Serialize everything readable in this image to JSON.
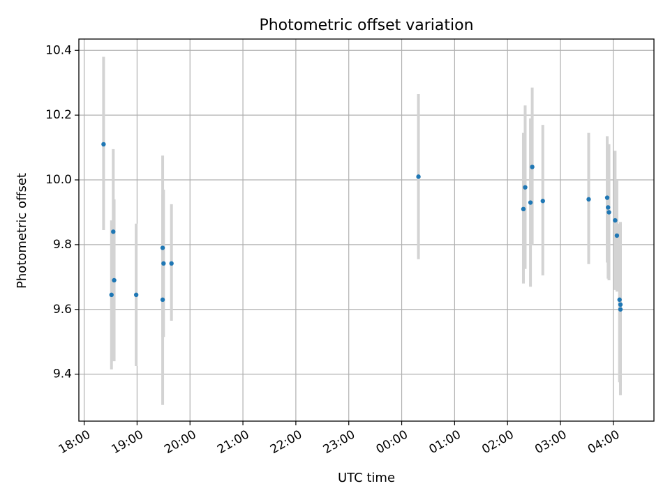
{
  "chart_data": {
    "type": "scatter",
    "title": "Photometric offset variation",
    "xlabel": "UTC time",
    "ylabel": "Photometric offset",
    "xlim": [
      "17:54",
      "04:46"
    ],
    "ylim": [
      9.255,
      10.435
    ],
    "grid": true,
    "colors": {
      "point": "#1f77b4",
      "errorbar": "#d3d3d3",
      "grid": "#b0b0b0"
    },
    "x_ticks": [
      "18:00",
      "19:00",
      "20:00",
      "21:00",
      "22:00",
      "23:00",
      "00:00",
      "01:00",
      "02:00",
      "03:00",
      "04:00"
    ],
    "y_ticks": [
      "9.4",
      "9.6",
      "9.8",
      "10.0",
      "10.2",
      "10.4"
    ],
    "series": [
      {
        "x": [
          "18:22",
          "18:31",
          "18:33",
          "18:34",
          "18:59",
          "19:29",
          "19:29",
          "19:30",
          "19:39",
          "00:19",
          "02:18",
          "02:20",
          "02:26",
          "02:28",
          "02:40",
          "03:32",
          "03:53",
          "03:54",
          "03:55",
          "04:02",
          "04:04",
          "04:07",
          "04:08",
          "04:08"
        ],
        "y": [
          10.11,
          9.645,
          9.84,
          9.69,
          9.645,
          9.63,
          9.79,
          9.742,
          9.742,
          10.01,
          9.91,
          9.977,
          9.93,
          10.04,
          9.935,
          9.94,
          9.945,
          9.915,
          9.9,
          9.875,
          9.828,
          9.63,
          9.615,
          9.6
        ],
        "yerr_low": [
          9.845,
          9.415,
          9.445,
          9.44,
          9.425,
          9.305,
          9.515,
          9.515,
          9.565,
          9.755,
          9.68,
          9.725,
          9.67,
          9.8,
          9.705,
          9.74,
          9.745,
          9.695,
          9.69,
          9.66,
          9.655,
          9.375,
          9.365,
          9.335
        ],
        "yerr_high": [
          10.38,
          9.875,
          10.095,
          9.94,
          9.865,
          9.955,
          10.075,
          9.97,
          9.925,
          10.265,
          10.145,
          10.23,
          10.19,
          10.285,
          10.17,
          10.145,
          10.135,
          10.11,
          10.11,
          10.09,
          10.0,
          9.865,
          9.87,
          9.865
        ]
      }
    ]
  }
}
